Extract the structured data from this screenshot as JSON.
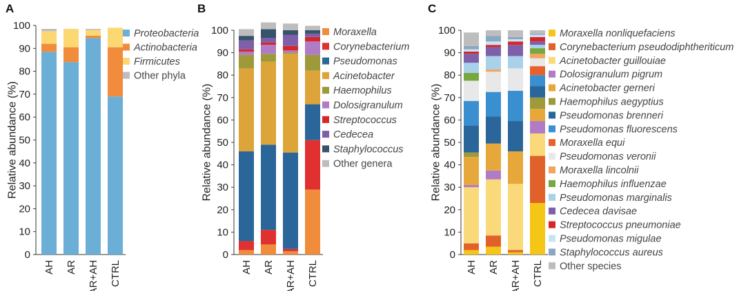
{
  "chart_data": [
    {
      "type": "bar",
      "stacked": true,
      "panel": "A",
      "title": "",
      "xlabel": "",
      "ylabel": "Relative abundance (%)",
      "ylim": [
        0,
        100
      ],
      "yticks": [
        0,
        10,
        20,
        30,
        40,
        50,
        60,
        70,
        80,
        90,
        100
      ],
      "categories": [
        "AH",
        "AR",
        "AR+AH",
        "CTRL"
      ],
      "series": [
        {
          "name": "Proteobacteria",
          "italic": true,
          "color": "#6BAED6",
          "values": [
            88.5,
            84,
            94.5,
            69
          ]
        },
        {
          "name": "Actinobacteria",
          "italic": true,
          "color": "#F08C3C",
          "values": [
            3.5,
            6.5,
            1,
            21.5
          ]
        },
        {
          "name": "Firmicutes",
          "italic": true,
          "color": "#FBD872",
          "values": [
            5.5,
            8,
            2.5,
            8.5
          ]
        },
        {
          "name": "Other phyla",
          "italic": false,
          "color": "#BDBDBD",
          "values": [
            1,
            0,
            0.5,
            0
          ]
        }
      ]
    },
    {
      "type": "bar",
      "stacked": true,
      "panel": "B",
      "title": "",
      "xlabel": "",
      "ylabel": "Relative abundance (%)",
      "ylim": [
        0,
        100
      ],
      "yticks": [
        0,
        10,
        20,
        30,
        40,
        50,
        60,
        70,
        80,
        90,
        100
      ],
      "categories": [
        "AH",
        "AR",
        "AR+AH",
        "CTRL"
      ],
      "series": [
        {
          "name": "Moraxella",
          "italic": true,
          "color": "#F08C3C",
          "values": [
            2,
            4.5,
            1.5,
            29
          ]
        },
        {
          "name": "Corynebacterium",
          "italic": true,
          "color": "#E03030",
          "values": [
            4,
            6.5,
            1,
            22
          ]
        },
        {
          "name": "Pseudomonas",
          "italic": true,
          "color": "#2A6699",
          "values": [
            40,
            38,
            43,
            16
          ]
        },
        {
          "name": "Acinetobacter",
          "italic": true,
          "color": "#DDA43A",
          "values": [
            37,
            37,
            44,
            15
          ]
        },
        {
          "name": "Haemophilus",
          "italic": true,
          "color": "#9E9A3A",
          "values": [
            6,
            3.5,
            0.5,
            7
          ]
        },
        {
          "name": "Dolosigranulum",
          "italic": true,
          "color": "#B07CC6",
          "values": [
            1.5,
            4,
            1,
            6
          ]
        },
        {
          "name": "Streptococcus",
          "italic": true,
          "color": "#D62728",
          "values": [
            1,
            1,
            2,
            2
          ]
        },
        {
          "name": "Cedecea",
          "italic": true,
          "color": "#7E5FAA",
          "values": [
            4,
            2,
            5,
            1.5
          ]
        },
        {
          "name": "Staphylococcus",
          "italic": true,
          "color": "#37536A",
          "values": [
            2,
            4,
            2,
            1.5
          ]
        },
        {
          "name": "Other genera",
          "italic": false,
          "color": "#BDBDBD",
          "values": [
            3,
            3,
            3,
            2
          ]
        }
      ]
    },
    {
      "type": "bar",
      "stacked": true,
      "panel": "C",
      "title": "",
      "xlabel": "",
      "ylabel": "Relative abundance (%)",
      "ylim": [
        0,
        100
      ],
      "yticks": [
        0,
        10,
        20,
        30,
        40,
        50,
        60,
        70,
        80,
        90,
        100
      ],
      "categories": [
        "AH",
        "AR",
        "AR+AH",
        "CTRL"
      ],
      "series": [
        {
          "name": "Moraxella nonliquefaciens",
          "italic": true,
          "color": "#F5C518",
          "values": [
            2,
            3.5,
            1,
            23
          ]
        },
        {
          "name": "Corynebacterium pseudodiphtheriticum",
          "italic": true,
          "color": "#E0622A",
          "values": [
            3,
            5,
            1,
            21
          ]
        },
        {
          "name": "Acinetobacter guillouiae",
          "italic": true,
          "color": "#FAD97A",
          "values": [
            25,
            25,
            29.5,
            10
          ]
        },
        {
          "name": "Dolosigranulum pigrum",
          "italic": true,
          "color": "#B07CC6",
          "values": [
            1,
            4,
            0,
            5.5
          ]
        },
        {
          "name": "Acinetobacter gerneri",
          "italic": true,
          "color": "#E6A83A",
          "values": [
            12.5,
            12,
            14.5,
            5.5
          ]
        },
        {
          "name": "Haemophilus aegyptius",
          "italic": true,
          "color": "#9E9A3A",
          "values": [
            2,
            0,
            0,
            5
          ]
        },
        {
          "name": "Pseudomonas brenneri",
          "italic": true,
          "color": "#2A6699",
          "values": [
            12,
            12,
            13.5,
            5
          ]
        },
        {
          "name": "Pseudomonas fluorescens",
          "italic": true,
          "color": "#3A8FD0",
          "values": [
            11,
            11,
            13.5,
            5
          ]
        },
        {
          "name": "Moraxella equi",
          "italic": true,
          "color": "#E8602C",
          "values": [
            0,
            0,
            0,
            4
          ]
        },
        {
          "name": "Pseudomonas veronii",
          "italic": true,
          "color": "#E8E8E8",
          "values": [
            9,
            9,
            10,
            3.5
          ]
        },
        {
          "name": "Moraxella lincolnii",
          "italic": true,
          "color": "#F4A460",
          "values": [
            0,
            1,
            0,
            2
          ]
        },
        {
          "name": "Haemophilus influenzae",
          "italic": true,
          "color": "#77A83F",
          "values": [
            3.5,
            0,
            0,
            2.5
          ]
        },
        {
          "name": "Pseudomonas marginalis",
          "italic": true,
          "color": "#A9D2EA",
          "values": [
            4.5,
            6,
            5.5,
            1.5
          ]
        },
        {
          "name": "Cedecea davisae",
          "italic": true,
          "color": "#7E5FAA",
          "values": [
            4,
            4,
            5,
            1.5
          ]
        },
        {
          "name": "Streptococcus pneumoniae",
          "italic": true,
          "color": "#D62728",
          "values": [
            1,
            1,
            1.5,
            2
          ]
        },
        {
          "name": "Pseudomonas migulae",
          "italic": true,
          "color": "#C9E4F2",
          "values": [
            1,
            1.5,
            1,
            1
          ]
        },
        {
          "name": "Staphylococcus aureus",
          "italic": true,
          "color": "#8BA7C4",
          "values": [
            1.5,
            2.5,
            1,
            0.5
          ]
        },
        {
          "name": "Other species",
          "italic": false,
          "color": "#BDBDBD",
          "values": [
            6,
            2.5,
            3,
            1.5
          ]
        }
      ]
    }
  ]
}
